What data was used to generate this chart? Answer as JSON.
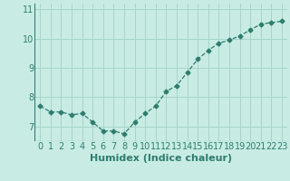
{
  "x": [
    0,
    1,
    2,
    3,
    4,
    5,
    6,
    7,
    8,
    9,
    10,
    11,
    12,
    13,
    14,
    15,
    16,
    17,
    18,
    19,
    20,
    21,
    22,
    23
  ],
  "y": [
    7.7,
    7.5,
    7.5,
    7.4,
    7.45,
    7.15,
    6.85,
    6.85,
    6.75,
    7.15,
    7.45,
    7.7,
    8.2,
    8.4,
    8.85,
    9.3,
    9.6,
    9.85,
    9.95,
    10.1,
    10.3,
    10.5,
    10.55,
    10.6
  ],
  "line_color": "#2e7d6e",
  "marker": "D",
  "markersize": 2.5,
  "linewidth": 0.9,
  "bg_color": "#c8ece4",
  "grid_color": "#a8d4cc",
  "xlabel": "Humidex (Indice chaleur)",
  "xlabel_fontsize": 8,
  "tick_fontsize": 7,
  "xlim": [
    -0.5,
    23.5
  ],
  "ylim": [
    6.5,
    11.2
  ],
  "yticks": [
    7,
    8,
    9,
    10,
    11
  ],
  "xticks": [
    0,
    1,
    2,
    3,
    4,
    5,
    6,
    7,
    8,
    9,
    10,
    11,
    12,
    13,
    14,
    15,
    16,
    17,
    18,
    19,
    20,
    21,
    22,
    23
  ]
}
